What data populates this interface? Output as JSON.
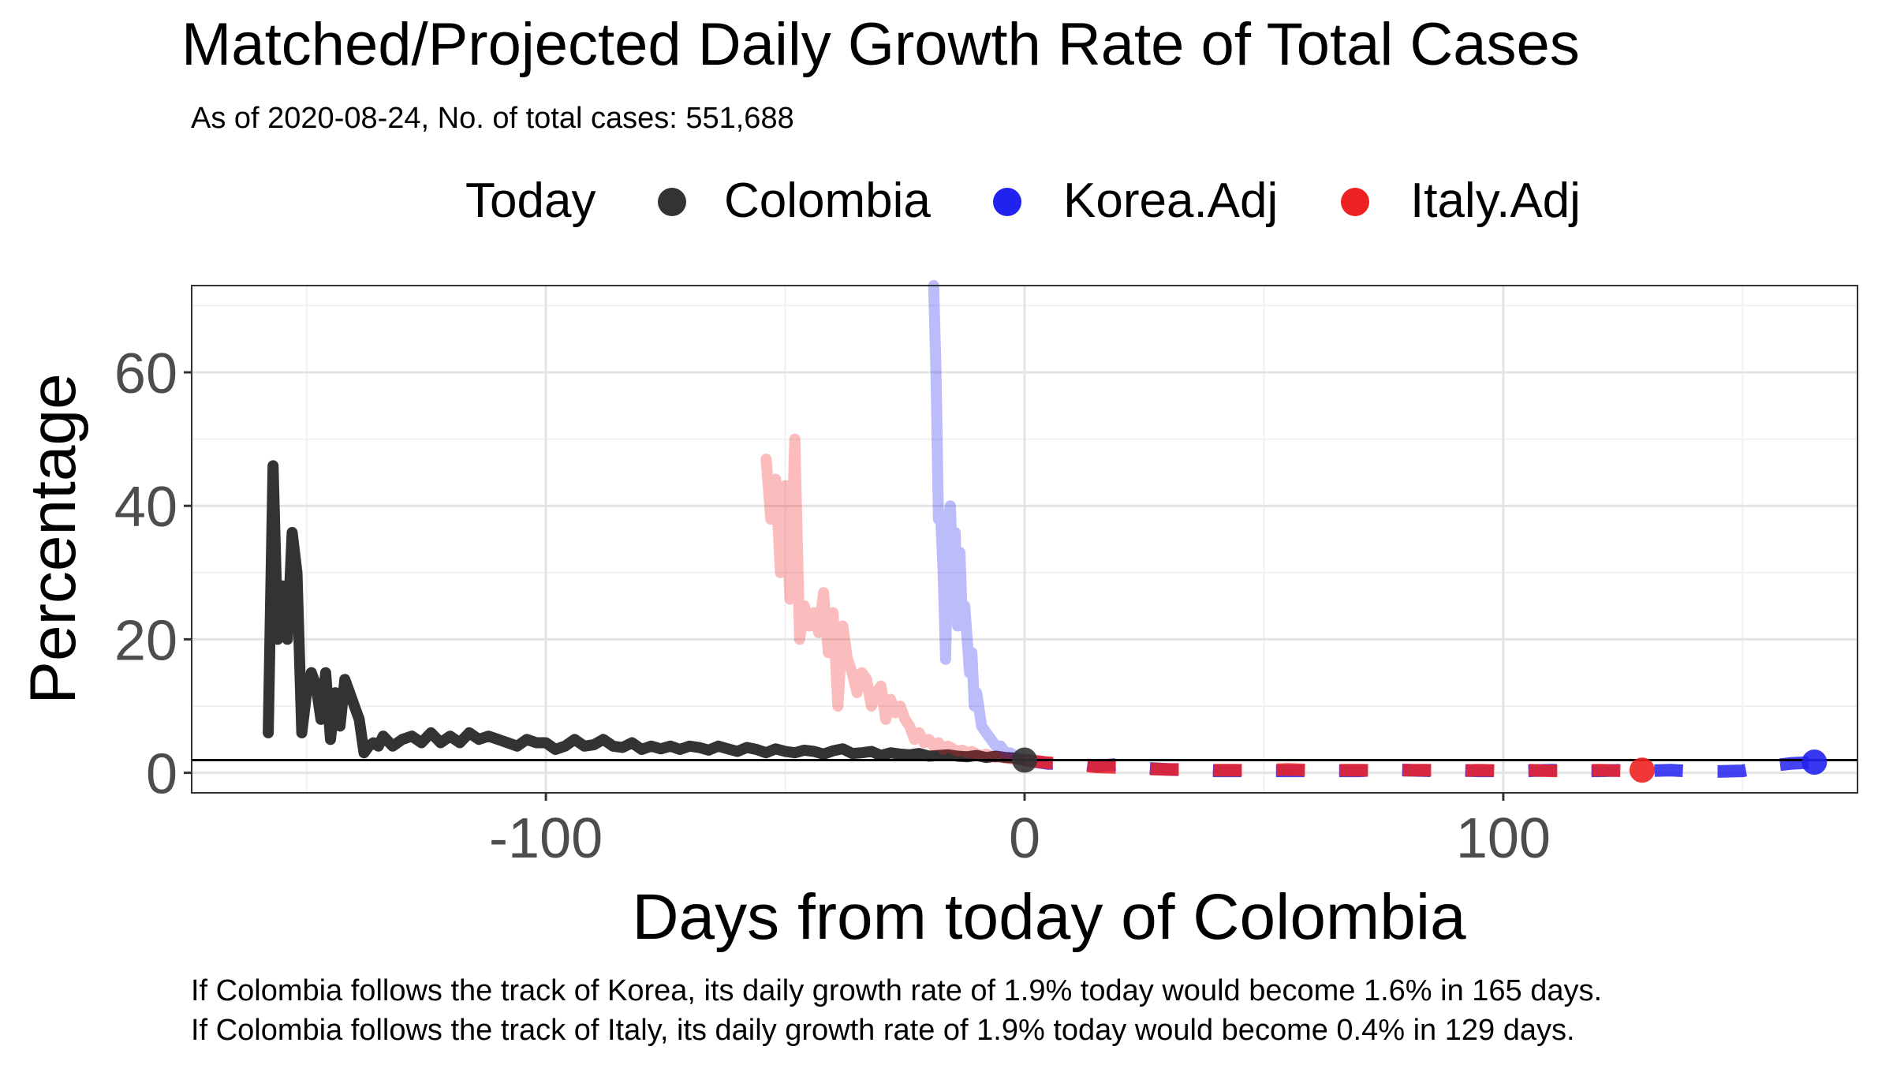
{
  "chart_data": {
    "type": "line",
    "title": "Matched/Projected Daily Growth Rate of Total Cases",
    "subtitle": "As of 2020-08-24, No. of total cases: 551,688",
    "xlabel": "Days from today of Colombia",
    "ylabel": "Percentage",
    "xlim": [
      -174,
      174
    ],
    "ylim": [
      -3,
      73
    ],
    "x_ticks": [
      -100,
      0,
      100
    ],
    "y_ticks": [
      0,
      20,
      40,
      60
    ],
    "grid": true,
    "legend": {
      "position": "top",
      "title": "Today",
      "entries": [
        {
          "label": "Colombia",
          "color": "#333333"
        },
        {
          "label": "Korea.Adj",
          "color": "#2222ee"
        },
        {
          "label": "Italy.Adj",
          "color": "#ee2222"
        }
      ]
    },
    "reference_line": {
      "y": 1.9,
      "color": "#000000"
    },
    "series": [
      {
        "name": "Colombia",
        "color": "#333333",
        "x": [
          -158,
          -157,
          -156,
          -155,
          -154,
          -153,
          -152,
          -151,
          -150,
          -149,
          -148,
          -147,
          -146,
          -145,
          -144,
          -143,
          -142,
          -141,
          -140,
          -139,
          -138,
          -137,
          -136,
          -135,
          -134,
          -132,
          -130,
          -128,
          -126,
          -124,
          -122,
          -120,
          -118,
          -116,
          -114,
          -112,
          -110,
          -108,
          -106,
          -104,
          -102,
          -100,
          -98,
          -96,
          -94,
          -92,
          -90,
          -88,
          -86,
          -84,
          -82,
          -80,
          -78,
          -76,
          -74,
          -72,
          -70,
          -68,
          -66,
          -64,
          -62,
          -60,
          -58,
          -56,
          -54,
          -52,
          -50,
          -48,
          -46,
          -44,
          -42,
          -40,
          -38,
          -36,
          -34,
          -32,
          -30,
          -28,
          -26,
          -24,
          -22,
          -20,
          -18,
          -16,
          -14,
          -12,
          -10,
          -8,
          -6,
          -4,
          -2,
          0
        ],
        "y": [
          6,
          46,
          20,
          28,
          20,
          36,
          30,
          6,
          12,
          15,
          13,
          8,
          15,
          5,
          12,
          7,
          14,
          12,
          10,
          8,
          3,
          4,
          4.5,
          4,
          5.5,
          4,
          5,
          5.5,
          4.5,
          6,
          4.5,
          5.5,
          4.5,
          6,
          5,
          5.5,
          5,
          4.5,
          4,
          5,
          4.5,
          4.5,
          3.5,
          4,
          5,
          4,
          4.2,
          5,
          4,
          3.8,
          4.5,
          3.5,
          4,
          3.6,
          4,
          3.5,
          4,
          3.8,
          3.4,
          4,
          3.6,
          3.2,
          3.8,
          3.5,
          3,
          3.6,
          3.2,
          3,
          3.4,
          3.2,
          2.8,
          3.3,
          3.6,
          2.9,
          3,
          3.2,
          2.6,
          3,
          2.8,
          2.7,
          2.9,
          2.5,
          2.6,
          2.7,
          2.5,
          2.4,
          2.6,
          2.3,
          2.5,
          2.3,
          2.2,
          1.9
        ]
      },
      {
        "name": "Korea.Adj",
        "color": "#2222ee",
        "opacity": 0.3,
        "x": [
          -19,
          -18.5,
          -18,
          -17.5,
          -17,
          -16.5,
          -16,
          -15.5,
          -15,
          -14.5,
          -14,
          -13.5,
          -13,
          -12.5,
          -12,
          -11.5,
          -11,
          -10.5,
          -10,
          -9,
          -8,
          -7,
          -6,
          -5,
          -4,
          -3,
          -2,
          -1,
          0
        ],
        "y": [
          73,
          60,
          38,
          38,
          30,
          17,
          38,
          40,
          30,
          36,
          22,
          33,
          22,
          25,
          20,
          15,
          18,
          10,
          12,
          7,
          6,
          5,
          4,
          4,
          3,
          3,
          2.5,
          2.2,
          1.9
        ]
      },
      {
        "name": "Italy.Adj",
        "color": "#ee2222",
        "opacity": 0.3,
        "x": [
          -54,
          -53,
          -52,
          -51,
          -50,
          -49,
          -48,
          -47,
          -46,
          -45,
          -44,
          -43,
          -42,
          -41,
          -40,
          -39,
          -38,
          -37,
          -36,
          -35,
          -34,
          -33,
          -32,
          -31,
          -30,
          -29,
          -28,
          -27,
          -26,
          -25,
          -24,
          -23,
          -22,
          -21,
          -20,
          -19,
          -18,
          -17,
          -16,
          -15,
          -14,
          -13,
          -12,
          -11,
          -10,
          -9,
          -8,
          -7,
          -6,
          -5,
          -4,
          -3,
          -2,
          -1,
          0
        ],
        "y": [
          47,
          38,
          44,
          30,
          43,
          26,
          50,
          20,
          25,
          22,
          24,
          21,
          27,
          18,
          24,
          10,
          22,
          17,
          15,
          12,
          15,
          14,
          10,
          12,
          13,
          8,
          11,
          9,
          10,
          8,
          7,
          5,
          6,
          4.5,
          5,
          4,
          4.5,
          3.5,
          4,
          3.6,
          3.2,
          3.4,
          3,
          3.2,
          2.8,
          2.6,
          2.8,
          2.5,
          2.3,
          2.4,
          2.2,
          2.1,
          2.0,
          1.95,
          1.9
        ]
      },
      {
        "name": "Korea.Adj",
        "color": "#2222ee",
        "style": "dashed",
        "x": [
          0,
          5,
          10,
          15,
          20,
          25,
          30,
          35,
          40,
          45,
          50,
          55,
          60,
          65,
          70,
          75,
          80,
          85,
          90,
          95,
          100,
          105,
          110,
          115,
          120,
          125,
          130,
          135,
          140,
          145,
          150,
          155,
          160,
          165
        ],
        "y": [
          1.9,
          1.4,
          1.5,
          1.0,
          1.3,
          0.7,
          0.5,
          0.4,
          0.3,
          0.3,
          0.3,
          0.3,
          0.3,
          0.3,
          0.3,
          0.5,
          0.4,
          0.3,
          0.4,
          0.3,
          0.3,
          0.3,
          0.4,
          0.3,
          0.3,
          0.4,
          0.3,
          0.4,
          0.2,
          0.2,
          0.3,
          1.0,
          1.4,
          1.6
        ]
      },
      {
        "name": "Italy.Adj",
        "color": "#ee2222",
        "style": "dashed",
        "x": [
          0,
          5,
          10,
          15,
          20,
          25,
          30,
          35,
          40,
          45,
          50,
          55,
          60,
          65,
          70,
          75,
          80,
          85,
          90,
          95,
          100,
          105,
          110,
          115,
          120,
          125,
          129
        ],
        "y": [
          1.9,
          1.5,
          1.2,
          0.9,
          0.8,
          0.6,
          0.5,
          0.5,
          0.4,
          0.4,
          0.4,
          0.5,
          0.4,
          0.4,
          0.4,
          0.3,
          0.4,
          0.4,
          0.3,
          0.4,
          0.3,
          0.4,
          0.3,
          0.3,
          0.4,
          0.3,
          0.4
        ]
      }
    ],
    "points": [
      {
        "series": "Colombia",
        "x": 0,
        "y": 1.9,
        "color": "#333333"
      },
      {
        "series": "Korea.Adj",
        "x": 165,
        "y": 1.6,
        "color": "#2222ee"
      },
      {
        "series": "Italy.Adj",
        "x": 129,
        "y": 0.4,
        "color": "#ee2222"
      }
    ],
    "annotations": [
      "If Colombia follows the track of Korea, its daily growth rate of 1.9% today would become 1.6% in 165 days.",
      "If Colombia follows the track of Italy, its daily growth rate of 1.9% today would become 0.4% in 129 days."
    ]
  }
}
